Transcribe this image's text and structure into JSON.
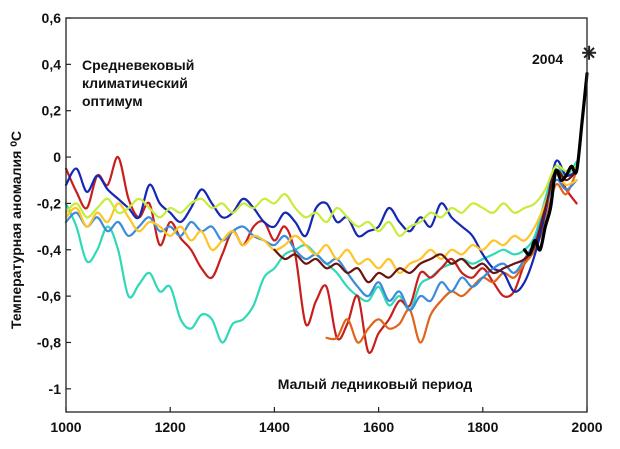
{
  "chart_data": {
    "type": "line",
    "title": "",
    "xlabel": "",
    "ylabel": "Температурная аномалия ⁰C",
    "xlim": [
      1000,
      2000
    ],
    "ylim": [
      -1.1,
      0.6
    ],
    "grid": false,
    "x_ticks": [
      "1000",
      "1200",
      "1400",
      "1600",
      "1800",
      "2000"
    ],
    "y_ticks": [
      "0,6",
      "0,4",
      "0,2",
      "0",
      "-0,2",
      "-0,4",
      "-0,6",
      "-0,8",
      "-1"
    ],
    "annotations": {
      "medieval": [
        "Средневековый",
        "климатический",
        "оптимум"
      ],
      "little_ice_age": "Малый ледниковый период",
      "year_2004": "2004"
    },
    "marker_2004": {
      "x": 2004,
      "y": 0.45,
      "symbol": "star"
    },
    "series": [
      {
        "color": "#2fd9b8",
        "x": [
          1000,
          1020,
          1040,
          1060,
          1080,
          1100,
          1120,
          1140,
          1160,
          1180,
          1200,
          1220,
          1240,
          1260,
          1280,
          1300,
          1320,
          1340,
          1360,
          1380,
          1400,
          1420,
          1440,
          1460,
          1480,
          1500,
          1520,
          1540,
          1560,
          1580,
          1600,
          1620,
          1640,
          1660,
          1680,
          1700,
          1720,
          1740,
          1760,
          1780,
          1800,
          1820,
          1840,
          1860,
          1880,
          1900,
          1920,
          1940,
          1960,
          1980
        ],
        "values": [
          -0.2,
          -0.3,
          -0.45,
          -0.4,
          -0.3,
          -0.4,
          -0.6,
          -0.55,
          -0.5,
          -0.58,
          -0.56,
          -0.7,
          -0.74,
          -0.68,
          -0.7,
          -0.8,
          -0.72,
          -0.7,
          -0.64,
          -0.52,
          -0.48,
          -0.42,
          -0.4,
          -0.38,
          -0.42,
          -0.46,
          -0.5,
          -0.56,
          -0.6,
          -0.62,
          -0.56,
          -0.64,
          -0.6,
          -0.66,
          -0.55,
          -0.52,
          -0.48,
          -0.46,
          -0.44,
          -0.46,
          -0.44,
          -0.42,
          -0.4,
          -0.42,
          -0.4,
          -0.34,
          -0.18,
          -0.04,
          -0.08,
          -0.02
        ]
      },
      {
        "color": "#c81e1e",
        "x": [
          1000,
          1020,
          1040,
          1060,
          1080,
          1100,
          1120,
          1140,
          1160,
          1180,
          1200,
          1220,
          1240,
          1260,
          1280,
          1300,
          1320,
          1340,
          1360,
          1380,
          1400,
          1420,
          1440,
          1460,
          1480,
          1500,
          1520,
          1540,
          1560,
          1580,
          1600,
          1620,
          1640,
          1660,
          1680,
          1700,
          1720,
          1740,
          1760,
          1780,
          1800,
          1820,
          1840,
          1860,
          1880,
          1900,
          1920,
          1940,
          1960,
          1980
        ],
        "values": [
          -0.05,
          -0.15,
          -0.22,
          -0.08,
          -0.12,
          0.0,
          -0.18,
          -0.26,
          -0.2,
          -0.38,
          -0.28,
          -0.35,
          -0.4,
          -0.48,
          -0.52,
          -0.42,
          -0.32,
          -0.38,
          -0.3,
          -0.28,
          -0.36,
          -0.3,
          -0.42,
          -0.72,
          -0.62,
          -0.56,
          -0.78,
          -0.72,
          -0.6,
          -0.84,
          -0.76,
          -0.7,
          -0.62,
          -0.64,
          -0.5,
          -0.52,
          -0.48,
          -0.44,
          -0.5,
          -0.52,
          -0.48,
          -0.54,
          -0.6,
          -0.58,
          -0.46,
          -0.38,
          -0.24,
          -0.06,
          -0.14,
          -0.2
        ]
      },
      {
        "color": "#e0641a",
        "x": [
          1500,
          1520,
          1540,
          1560,
          1580,
          1600,
          1620,
          1640,
          1660,
          1680,
          1700,
          1720,
          1740,
          1760,
          1780,
          1800,
          1820,
          1840,
          1860,
          1880,
          1900,
          1920,
          1940,
          1960,
          1980
        ],
        "values": [
          -0.78,
          -0.78,
          -0.7,
          -0.8,
          -0.74,
          -0.7,
          -0.74,
          -0.72,
          -0.66,
          -0.8,
          -0.68,
          -0.62,
          -0.58,
          -0.6,
          -0.56,
          -0.52,
          -0.54,
          -0.5,
          -0.52,
          -0.46,
          -0.4,
          -0.28,
          -0.12,
          -0.16,
          -0.06
        ]
      },
      {
        "color": "#1428b4",
        "x": [
          1000,
          1020,
          1040,
          1060,
          1080,
          1100,
          1120,
          1140,
          1160,
          1180,
          1200,
          1220,
          1240,
          1260,
          1280,
          1300,
          1320,
          1340,
          1360,
          1380,
          1400,
          1420,
          1440,
          1460,
          1480,
          1500,
          1520,
          1540,
          1560,
          1580,
          1600,
          1620,
          1640,
          1660,
          1680,
          1700,
          1720,
          1740,
          1760,
          1780,
          1800,
          1820,
          1840,
          1860,
          1880,
          1900,
          1920,
          1940,
          1960,
          1980
        ],
        "values": [
          -0.12,
          -0.05,
          -0.15,
          -0.08,
          -0.14,
          -0.18,
          -0.22,
          -0.26,
          -0.12,
          -0.2,
          -0.24,
          -0.28,
          -0.22,
          -0.14,
          -0.2,
          -0.26,
          -0.24,
          -0.18,
          -0.22,
          -0.28,
          -0.3,
          -0.24,
          -0.28,
          -0.34,
          -0.22,
          -0.2,
          -0.28,
          -0.26,
          -0.34,
          -0.32,
          -0.3,
          -0.22,
          -0.28,
          -0.32,
          -0.26,
          -0.3,
          -0.2,
          -0.26,
          -0.3,
          -0.34,
          -0.42,
          -0.48,
          -0.5,
          -0.58,
          -0.54,
          -0.42,
          -0.24,
          -0.02,
          -0.08,
          -0.06
        ]
      },
      {
        "color": "#3c8cdc",
        "x": [
          1000,
          1020,
          1040,
          1060,
          1080,
          1100,
          1120,
          1140,
          1160,
          1180,
          1200,
          1220,
          1240,
          1260,
          1280,
          1300,
          1320,
          1340,
          1360,
          1380,
          1400,
          1420,
          1440,
          1460,
          1480,
          1500,
          1520,
          1540,
          1560,
          1580,
          1600,
          1620,
          1640,
          1660,
          1680,
          1700,
          1720,
          1740,
          1760,
          1780,
          1800,
          1820,
          1840,
          1860,
          1880,
          1900,
          1920,
          1940,
          1960,
          1980
        ],
        "values": [
          -0.28,
          -0.24,
          -0.3,
          -0.26,
          -0.32,
          -0.28,
          -0.34,
          -0.3,
          -0.26,
          -0.32,
          -0.3,
          -0.34,
          -0.28,
          -0.32,
          -0.3,
          -0.36,
          -0.32,
          -0.3,
          -0.34,
          -0.36,
          -0.38,
          -0.34,
          -0.4,
          -0.44,
          -0.42,
          -0.46,
          -0.44,
          -0.5,
          -0.56,
          -0.6,
          -0.54,
          -0.62,
          -0.58,
          -0.66,
          -0.6,
          -0.62,
          -0.54,
          -0.58,
          -0.52,
          -0.56,
          -0.52,
          -0.48,
          -0.46,
          -0.5,
          -0.44,
          -0.36,
          -0.22,
          -0.1,
          -0.14,
          -0.1
        ]
      },
      {
        "color": "#ffc428",
        "x": [
          1000,
          1020,
          1040,
          1060,
          1080,
          1100,
          1120,
          1140,
          1160,
          1180,
          1200,
          1220,
          1240,
          1260,
          1280,
          1300,
          1320,
          1340,
          1360,
          1380,
          1400,
          1420,
          1440,
          1460,
          1480,
          1500,
          1520,
          1540,
          1560,
          1580,
          1600,
          1620,
          1640,
          1660,
          1680,
          1700,
          1720,
          1740,
          1760,
          1780,
          1800,
          1820,
          1840,
          1860,
          1880,
          1900,
          1920,
          1940,
          1960,
          1980
        ],
        "values": [
          -0.26,
          -0.22,
          -0.3,
          -0.24,
          -0.28,
          -0.2,
          -0.26,
          -0.32,
          -0.28,
          -0.3,
          -0.34,
          -0.3,
          -0.36,
          -0.32,
          -0.4,
          -0.36,
          -0.32,
          -0.38,
          -0.34,
          -0.36,
          -0.4,
          -0.38,
          -0.34,
          -0.38,
          -0.42,
          -0.38,
          -0.44,
          -0.4,
          -0.46,
          -0.44,
          -0.48,
          -0.44,
          -0.5,
          -0.46,
          -0.44,
          -0.4,
          -0.44,
          -0.4,
          -0.42,
          -0.38,
          -0.4,
          -0.36,
          -0.38,
          -0.34,
          -0.36,
          -0.3,
          -0.2,
          -0.08,
          -0.12,
          -0.1
        ]
      },
      {
        "color": "#c8ec3c",
        "x": [
          1000,
          1020,
          1040,
          1060,
          1080,
          1100,
          1120,
          1140,
          1160,
          1180,
          1200,
          1220,
          1240,
          1260,
          1280,
          1300,
          1320,
          1340,
          1360,
          1380,
          1400,
          1420,
          1440,
          1460,
          1480,
          1500,
          1520,
          1540,
          1560,
          1580,
          1600,
          1620,
          1640,
          1660,
          1680,
          1700,
          1720,
          1740,
          1760,
          1780,
          1800,
          1820,
          1840,
          1860,
          1880,
          1900,
          1920,
          1940,
          1960,
          1980
        ],
        "values": [
          -0.24,
          -0.2,
          -0.26,
          -0.22,
          -0.18,
          -0.24,
          -0.22,
          -0.18,
          -0.22,
          -0.26,
          -0.22,
          -0.24,
          -0.2,
          -0.18,
          -0.22,
          -0.2,
          -0.24,
          -0.2,
          -0.22,
          -0.18,
          -0.2,
          -0.16,
          -0.22,
          -0.26,
          -0.24,
          -0.28,
          -0.22,
          -0.26,
          -0.3,
          -0.28,
          -0.32,
          -0.28,
          -0.34,
          -0.3,
          -0.28,
          -0.24,
          -0.26,
          -0.22,
          -0.24,
          -0.2,
          -0.22,
          -0.24,
          -0.2,
          -0.24,
          -0.22,
          -0.2,
          -0.14,
          -0.04,
          -0.06,
          -0.04
        ]
      },
      {
        "color": "#6a1410",
        "x": [
          1400,
          1420,
          1440,
          1460,
          1480,
          1500,
          1520,
          1540,
          1560,
          1580,
          1600,
          1620,
          1640,
          1660,
          1680,
          1700,
          1720,
          1740,
          1760,
          1780,
          1800,
          1820,
          1840,
          1860,
          1880,
          1900,
          1920,
          1940,
          1960,
          1980
        ],
        "values": [
          -0.4,
          -0.44,
          -0.42,
          -0.46,
          -0.44,
          -0.48,
          -0.46,
          -0.5,
          -0.48,
          -0.54,
          -0.5,
          -0.52,
          -0.48,
          -0.5,
          -0.46,
          -0.44,
          -0.42,
          -0.46,
          -0.44,
          -0.48,
          -0.46,
          -0.5,
          -0.48,
          -0.46,
          -0.44,
          -0.38,
          -0.22,
          -0.06,
          -0.1,
          -0.06
        ]
      },
      {
        "color": "#000000",
        "bold": true,
        "x": [
          1880,
          1890,
          1900,
          1910,
          1920,
          1930,
          1940,
          1950,
          1960,
          1970,
          1980,
          1990,
          2000
        ],
        "values": [
          -0.4,
          -0.42,
          -0.36,
          -0.4,
          -0.3,
          -0.22,
          -0.06,
          -0.1,
          -0.08,
          -0.04,
          -0.06,
          0.14,
          0.36
        ]
      }
    ]
  }
}
